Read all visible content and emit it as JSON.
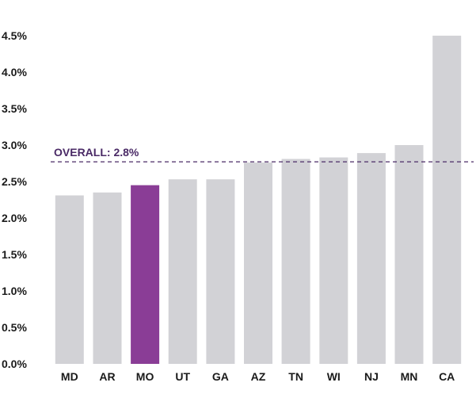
{
  "chart_data": {
    "type": "bar",
    "categories": [
      "MD",
      "AR",
      "MO",
      "UT",
      "GA",
      "AZ",
      "TN",
      "WI",
      "NJ",
      "MN",
      "CA"
    ],
    "values": [
      2.31,
      2.35,
      2.45,
      2.53,
      2.53,
      2.76,
      2.81,
      2.83,
      2.89,
      3.0,
      4.5
    ],
    "highlight_category": "MO",
    "ylim": [
      0,
      4.5
    ],
    "yticks": [
      0,
      0.5,
      1.0,
      1.5,
      2.0,
      2.5,
      3.0,
      3.5,
      4.0,
      4.5
    ],
    "ytick_labels": [
      "0.0%",
      "0.5%",
      "1.0%",
      "1.5%",
      "2.0%",
      "2.5%",
      "3.0%",
      "3.5%",
      "4.0%",
      "4.5%"
    ],
    "reference_line": {
      "value": 2.77,
      "label": "OVERALL: 2.8%"
    },
    "grid": false,
    "colors": {
      "bar": "#d2d2d6",
      "highlight": "#8a3d96",
      "reference": "#4a2a66",
      "text": "#1a1a1a"
    }
  }
}
